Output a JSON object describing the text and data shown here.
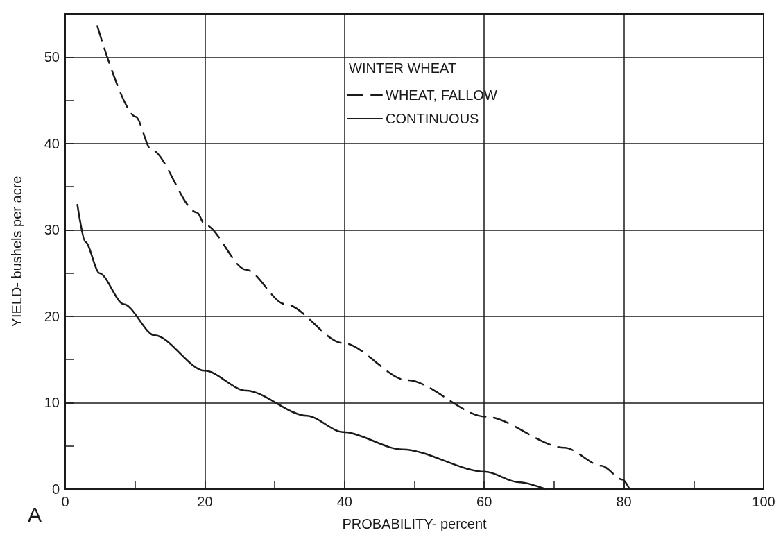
{
  "chart_data": {
    "type": "line",
    "xlabel": "PROBABILITY- percent",
    "ylabel": "YIELD- bushels per acre",
    "legend_title": "WINTER WHEAT",
    "annotations": [
      "A"
    ],
    "xlim": [
      0,
      100
    ],
    "ylim": [
      0,
      55
    ],
    "xticks": [
      0,
      {
        "value": 10,
        "label": null
      },
      20,
      {
        "value": 30,
        "label": null
      },
      40,
      {
        "value": 50,
        "label": null
      },
      60,
      {
        "value": 70,
        "label": null
      },
      80,
      {
        "value": 90,
        "label": null
      },
      100
    ],
    "yticks": [
      0,
      {
        "value": 5,
        "label": null
      },
      10,
      {
        "value": 15,
        "label": null
      },
      20,
      {
        "value": 25,
        "label": null
      },
      30,
      {
        "value": 35,
        "label": null
      },
      40,
      {
        "value": 45,
        "label": null
      },
      50
    ],
    "grid": true,
    "legend": "top",
    "marker": "none",
    "series": [
      {
        "name": "WHEAT, FALLOW",
        "color": "#1a1a1a",
        "line_style": "dashed",
        "x": [
          4.6,
          10.1,
          12.3,
          18.9,
          20,
          25.9,
          31.5,
          39.8,
          49.0,
          60.2,
          71.5,
          76.8,
          79.8,
          80.8
        ],
        "values": [
          53.6,
          43.1,
          39.3,
          32.0,
          30.6,
          25.4,
          21.4,
          16.9,
          12.6,
          8.4,
          4.8,
          2.7,
          1.1,
          0
        ]
      },
      {
        "name": "CONTINUOUS",
        "color": "#1a1a1a",
        "line_style": "solid",
        "x": [
          1.75,
          2.9,
          4.9,
          8.4,
          12.8,
          20,
          25.9,
          34.6,
          39.8,
          48.3,
          60.2,
          64.9,
          68.8
        ],
        "values": [
          32.9,
          28.6,
          25.0,
          21.4,
          17.8,
          13.7,
          11.4,
          8.5,
          6.6,
          4.6,
          2.0,
          0.8,
          0
        ]
      }
    ]
  }
}
